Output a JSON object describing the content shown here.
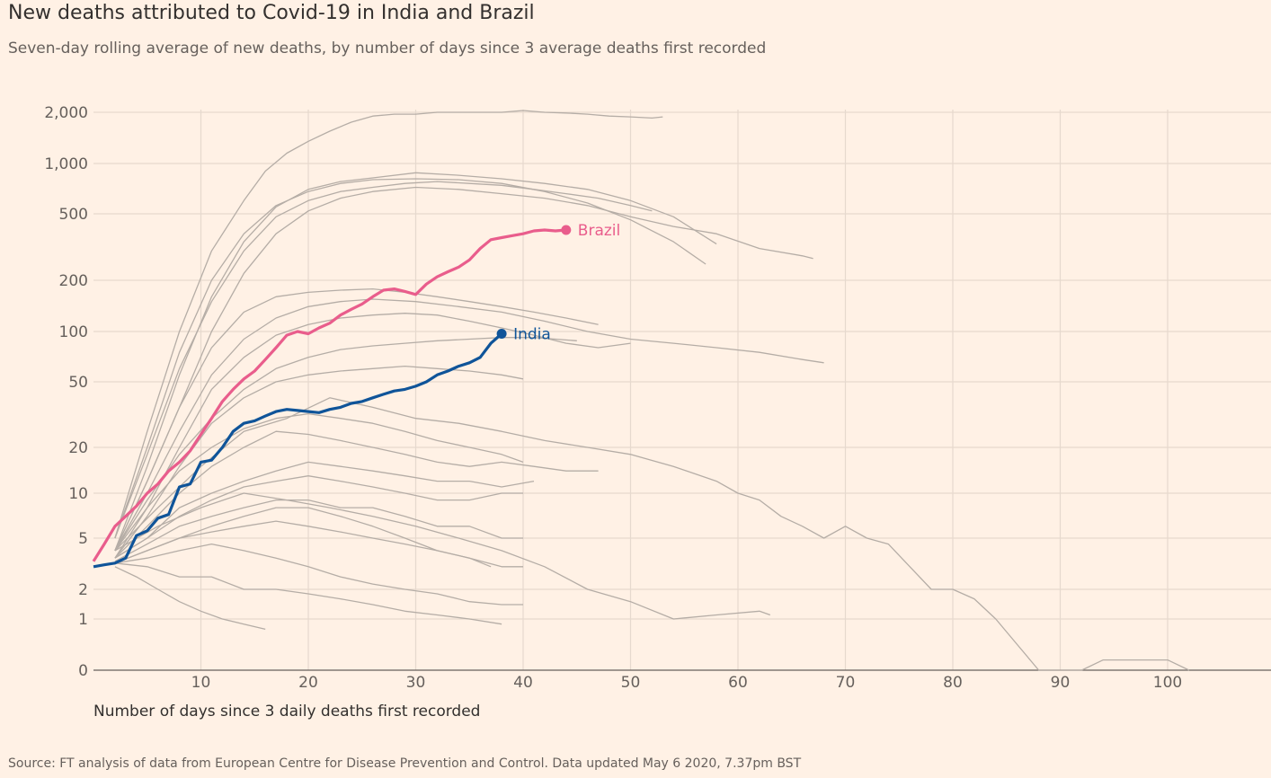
{
  "header": {
    "title": "New deaths attributed to Covid-19 in India and Brazil",
    "subtitle": "Seven-day rolling average of new deaths, by number of days since 3 average deaths first recorded"
  },
  "footer": {
    "source": "Source: FT analysis of data from European Centre for Disease Prevention and Control. Data updated May 6 2020, 7.37pm BST"
  },
  "chart_data": {
    "type": "line",
    "title": "New deaths attributed to Covid-19 in India and Brazil",
    "xlabel": "Number of days since 3 daily deaths first recorded",
    "ylabel": "",
    "y_scale": "symlog",
    "xlim": [
      0,
      110
    ],
    "ylim": [
      0,
      2000
    ],
    "x_ticks": [
      10,
      20,
      30,
      40,
      50,
      60,
      70,
      80,
      90,
      100
    ],
    "x_tick_labels": [
      "10",
      "20",
      "30",
      "40",
      "50",
      "60",
      "70",
      "80",
      "90",
      "100"
    ],
    "y_ticks": [
      0,
      1,
      2,
      5,
      10,
      20,
      50,
      100,
      200,
      500,
      1000,
      2000
    ],
    "y_tick_labels": [
      "0",
      "1",
      "2",
      "5",
      "10",
      "20",
      "50",
      "100",
      "200",
      "500",
      "1,000",
      "2,000"
    ],
    "grid": true,
    "colors": {
      "background": "#fff1e5",
      "grid": "#e6d9ce",
      "other": "#b5ada6",
      "brazil": "#e95d8c",
      "india": "#0f5499"
    },
    "highlighted": [
      {
        "name": "Brazil",
        "color": "#e95d8c",
        "x": [
          0,
          1,
          2,
          3,
          4,
          5,
          6,
          7,
          8,
          9,
          10,
          11,
          12,
          13,
          14,
          15,
          16,
          17,
          18,
          19,
          20,
          21,
          22,
          23,
          24,
          25,
          26,
          27,
          28,
          29,
          30,
          31,
          32,
          33,
          34,
          35,
          36,
          37,
          38,
          39,
          40,
          41,
          42,
          43,
          44
        ],
        "y": [
          3.3,
          4.5,
          6,
          7,
          8.2,
          10,
          11.5,
          14,
          16,
          19,
          24,
          30,
          38,
          45,
          52,
          58,
          68,
          80,
          95,
          100,
          97,
          105,
          112,
          125,
          135,
          145,
          160,
          175,
          178,
          172,
          165,
          190,
          210,
          225,
          240,
          265,
          310,
          350,
          360,
          370,
          380,
          395,
          400,
          395,
          400
        ]
      },
      {
        "name": "India",
        "color": "#0f5499",
        "x": [
          0,
          1,
          2,
          3,
          4,
          5,
          6,
          7,
          8,
          9,
          10,
          11,
          12,
          13,
          14,
          15,
          16,
          17,
          18,
          19,
          20,
          21,
          22,
          23,
          24,
          25,
          26,
          27,
          28,
          29,
          30,
          31,
          32,
          33,
          34,
          35,
          36,
          37,
          38
        ],
        "y": [
          3,
          3.1,
          3.2,
          3.5,
          5.2,
          5.6,
          6.8,
          7.2,
          11,
          11.5,
          16,
          16.5,
          20,
          25,
          28,
          29,
          31,
          33,
          34,
          33.5,
          33,
          32.5,
          34,
          35,
          37,
          38,
          40,
          42,
          44,
          45,
          47,
          50,
          55,
          58,
          62,
          65,
          70,
          85,
          97
        ]
      }
    ],
    "other_series": [
      {
        "x": [
          2,
          5,
          8,
          11,
          14,
          16,
          18,
          20,
          22,
          24,
          26,
          28,
          30,
          32,
          34,
          36,
          38,
          40,
          42,
          44,
          46,
          48,
          50,
          52,
          53
        ],
        "y": [
          5,
          25,
          100,
          300,
          600,
          900,
          1150,
          1350,
          1550,
          1750,
          1900,
          1950,
          1950,
          2000,
          2000,
          2000,
          2000,
          2050,
          2000,
          1980,
          1950,
          1900,
          1880,
          1850,
          1880
        ]
      },
      {
        "x": [
          2,
          5,
          8,
          11,
          14,
          17,
          20,
          23,
          26,
          30,
          34,
          38,
          42,
          46,
          50,
          54,
          58
        ],
        "y": [
          4,
          15,
          55,
          160,
          340,
          550,
          700,
          780,
          820,
          880,
          850,
          810,
          760,
          700,
          600,
          480,
          330
        ]
      },
      {
        "x": [
          2,
          5,
          8,
          11,
          14,
          17,
          20,
          23,
          26,
          30,
          34,
          38,
          42,
          46,
          50,
          54,
          57
        ],
        "y": [
          5,
          20,
          75,
          200,
          380,
          560,
          680,
          760,
          800,
          810,
          800,
          760,
          680,
          580,
          460,
          340,
          250
        ]
      },
      {
        "x": [
          2,
          5,
          8,
          11,
          14,
          17,
          20,
          23,
          26,
          30,
          34,
          38,
          42,
          46,
          50,
          54,
          58,
          62,
          66,
          67
        ],
        "y": [
          4,
          12,
          35,
          100,
          220,
          380,
          520,
          620,
          680,
          720,
          700,
          660,
          620,
          560,
          480,
          420,
          380,
          310,
          280,
          270
        ]
      },
      {
        "x": [
          2,
          5,
          8,
          11,
          14,
          17,
          20,
          23,
          26,
          29,
          32,
          35,
          38,
          41,
          44,
          47,
          50,
          52
        ],
        "y": [
          5,
          18,
          60,
          150,
          300,
          480,
          600,
          680,
          720,
          760,
          780,
          760,
          740,
          700,
          660,
          620,
          560,
          520
        ]
      },
      {
        "x": [
          2,
          5,
          8,
          11,
          14,
          17,
          20,
          23,
          26,
          30,
          34,
          38,
          42,
          46,
          50,
          54,
          58,
          62,
          66,
          68
        ],
        "y": [
          4,
          10,
          25,
          55,
          90,
          120,
          140,
          150,
          155,
          150,
          140,
          130,
          115,
          100,
          90,
          85,
          80,
          75,
          68,
          65
        ]
      },
      {
        "x": [
          2,
          5,
          8,
          11,
          14,
          17,
          20,
          23,
          26,
          29,
          32,
          35,
          38,
          41,
          44,
          47
        ],
        "y": [
          4,
          12,
          35,
          80,
          130,
          160,
          170,
          175,
          178,
          170,
          160,
          150,
          140,
          130,
          120,
          110
        ]
      },
      {
        "x": [
          2,
          5,
          8,
          11,
          14,
          17,
          20,
          23,
          26,
          29,
          32,
          35,
          38,
          41,
          44,
          47,
          50
        ],
        "y": [
          3.5,
          8,
          20,
          45,
          70,
          95,
          110,
          120,
          125,
          128,
          125,
          115,
          105,
          95,
          85,
          80,
          85
        ]
      },
      {
        "x": [
          2,
          5,
          8,
          11,
          14,
          17,
          20,
          23,
          26,
          29,
          32,
          35,
          38,
          41,
          43,
          45
        ],
        "y": [
          4,
          9,
          18,
          30,
          45,
          60,
          70,
          78,
          82,
          85,
          88,
          90,
          92,
          92,
          90,
          88
        ]
      },
      {
        "x": [
          2,
          5,
          8,
          11,
          14,
          17,
          20,
          23,
          26,
          29,
          32,
          35,
          38,
          40
        ],
        "y": [
          3.5,
          7,
          15,
          28,
          40,
          50,
          55,
          58,
          60,
          62,
          60,
          58,
          55,
          52
        ]
      },
      {
        "x": [
          2,
          6,
          10,
          14,
          18,
          22,
          26,
          30,
          34,
          38,
          42,
          46,
          50,
          54,
          58,
          60,
          62,
          64,
          66,
          68,
          70,
          72,
          74,
          76,
          78,
          80,
          82,
          84,
          86,
          88,
          90,
          92,
          94,
          96,
          98,
          100,
          102
        ],
        "y": [
          4,
          8,
          15,
          25,
          30,
          40,
          35,
          30,
          28,
          25,
          22,
          20,
          18,
          15,
          12,
          10,
          9,
          7,
          6,
          5,
          6,
          5,
          4.5,
          3,
          2,
          2,
          1.6,
          1,
          0.5,
          0,
          0,
          0,
          0.2,
          0.2,
          0.2,
          0.2,
          0
        ]
      },
      {
        "x": [
          2,
          6,
          10,
          14,
          18,
          22,
          26,
          30,
          34,
          38,
          42,
          46,
          50,
          54,
          58,
          62,
          63
        ],
        "y": [
          4,
          6,
          8,
          10,
          9,
          8,
          7,
          6,
          5,
          4,
          3,
          2,
          1.5,
          1,
          1.1,
          1.2,
          1.1
        ]
      },
      {
        "x": [
          2,
          5,
          8,
          11,
          14,
          17,
          20,
          23,
          26,
          29,
          32,
          35,
          38,
          40
        ],
        "y": [
          4,
          8,
          14,
          20,
          26,
          30,
          32,
          30,
          28,
          25,
          22,
          20,
          18,
          16
        ]
      },
      {
        "x": [
          2,
          5,
          8,
          11,
          14,
          17,
          20,
          23,
          26,
          29,
          32,
          35,
          38,
          41,
          44,
          47
        ],
        "y": [
          3.5,
          6,
          10,
          15,
          20,
          25,
          24,
          22,
          20,
          18,
          16,
          15,
          16,
          15,
          14,
          14
        ]
      },
      {
        "x": [
          2,
          5,
          8,
          11,
          14,
          17,
          20,
          23,
          26,
          29,
          32,
          35,
          38,
          40
        ],
        "y": [
          3.5,
          5,
          7,
          9,
          11,
          12,
          13,
          12,
          11,
          10,
          9,
          9,
          10,
          10
        ]
      },
      {
        "x": [
          2,
          5,
          8,
          11,
          14,
          17,
          20,
          23,
          26,
          29,
          32,
          35,
          38,
          40
        ],
        "y": [
          3.3,
          4.5,
          6,
          7,
          8,
          9,
          9,
          8,
          8,
          7,
          6,
          6,
          5,
          5
        ]
      },
      {
        "x": [
          2,
          5,
          8,
          11,
          14,
          17,
          20,
          23,
          26,
          29,
          32,
          35,
          38,
          40
        ],
        "y": [
          3.2,
          4,
          5,
          5.5,
          6,
          6.5,
          6,
          5.5,
          5,
          4.5,
          4,
          3.5,
          3,
          3
        ]
      },
      {
        "x": [
          2,
          5,
          8,
          11,
          14,
          17,
          20,
          23,
          26,
          29,
          32,
          35,
          38,
          40
        ],
        "y": [
          3.2,
          3.5,
          4,
          4.5,
          4,
          3.5,
          3,
          2.5,
          2.2,
          2,
          1.8,
          1.5,
          1.4,
          1.4
        ]
      },
      {
        "x": [
          2,
          5,
          8,
          11,
          14,
          17,
          20,
          23,
          26,
          29,
          32,
          35,
          38
        ],
        "y": [
          3.2,
          3,
          2.5,
          2.5,
          2,
          2,
          1.8,
          1.6,
          1.4,
          1.2,
          1.1,
          1,
          0.9
        ]
      },
      {
        "x": [
          2,
          4,
          6,
          8,
          10,
          12,
          14,
          16
        ],
        "y": [
          3,
          2.5,
          2,
          1.5,
          1.2,
          1,
          0.9,
          0.8
        ]
      },
      {
        "x": [
          2,
          5,
          8,
          11,
          14,
          17,
          20,
          23,
          26,
          29,
          32,
          35,
          37
        ],
        "y": [
          3.2,
          4,
          5,
          6,
          7,
          8,
          8,
          7,
          6,
          5,
          4,
          3.5,
          3
        ]
      },
      {
        "x": [
          2,
          5,
          8,
          11,
          14,
          17,
          20,
          23,
          26,
          29,
          32,
          35,
          38,
          41
        ],
        "y": [
          3.5,
          5,
          8,
          10,
          12,
          14,
          16,
          15,
          14,
          13,
          12,
          12,
          11,
          12
        ]
      }
    ]
  },
  "legend": {
    "brazil": "Brazil",
    "india": "India"
  }
}
